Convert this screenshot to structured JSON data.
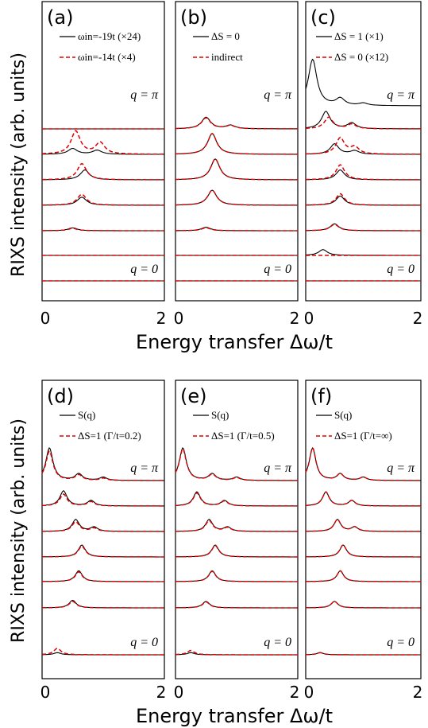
{
  "chart_data": {
    "type": "line",
    "ylabel": "RIXS intensity (arb. units)",
    "xlabel": "Energy transfer Δω/t",
    "xlim": [
      0,
      2
    ],
    "xticks": [
      "0",
      "2"
    ],
    "q_top_label": "q = π",
    "q_bottom_label": "q = 0",
    "colors": {
      "solid": "#000000",
      "dashed": "#dd0000"
    },
    "panels": [
      {
        "label": "(a)",
        "legend": [
          "ωin=-19t (×24)",
          "ωin=-14t (×4)"
        ],
        "curves": [
          {
            "q": "0",
            "solid": [],
            "dashed": []
          },
          {
            "q": "π/6",
            "solid": [],
            "dashed": []
          },
          {
            "q": "π/3",
            "solid": [
              [
                0.5,
                0.25
              ]
            ],
            "dashed": [
              [
                0.5,
                0.2
              ]
            ]
          },
          {
            "q": "π/2",
            "solid": [
              [
                0.65,
                0.7
              ]
            ],
            "dashed": [
              [
                0.65,
                0.95
              ]
            ]
          },
          {
            "q": "2π/3",
            "solid": [
              [
                0.7,
                0.85
              ]
            ],
            "dashed": [
              [
                0.65,
                1.4
              ]
            ]
          },
          {
            "q": "5π/6",
            "solid": [
              [
                0.5,
                0.5
              ],
              [
                0.9,
                0.35
              ]
            ],
            "dashed": [
              [
                0.55,
                2.0
              ],
              [
                0.95,
                1.0
              ]
            ]
          },
          {
            "q": "π",
            "solid": [],
            "dashed": []
          }
        ]
      },
      {
        "label": "(b)",
        "legend": [
          "ΔS = 0",
          "indirect"
        ],
        "curves": [
          {
            "q": "0",
            "solid": [],
            "dashed": []
          },
          {
            "q": "π/6",
            "solid": [],
            "dashed": []
          },
          {
            "q": "π/3",
            "solid": [
              [
                0.5,
                0.3
              ]
            ],
            "dashed": [
              [
                0.5,
                0.25
              ]
            ]
          },
          {
            "q": "π/2",
            "solid": [
              [
                0.6,
                1.3
              ]
            ],
            "dashed": [
              [
                0.6,
                1.3
              ]
            ]
          },
          {
            "q": "2π/3",
            "solid": [
              [
                0.65,
                1.8
              ]
            ],
            "dashed": [
              [
                0.65,
                1.8
              ]
            ]
          },
          {
            "q": "5π/6",
            "solid": [
              [
                0.6,
                1.8
              ]
            ],
            "dashed": [
              [
                0.6,
                1.8
              ]
            ]
          },
          {
            "q": "π",
            "solid": [
              [
                0.5,
                1.0
              ],
              [
                0.9,
                0.3
              ]
            ],
            "dashed": [
              [
                0.5,
                0.95
              ],
              [
                0.9,
                0.28
              ]
            ]
          }
        ]
      },
      {
        "label": "(c)",
        "legend": [
          "ΔS = 1 (×1)",
          "ΔS = 0 (×12)"
        ],
        "curves": [
          {
            "q": "0",
            "solid": [],
            "dashed": []
          },
          {
            "q": "π/6",
            "solid": [
              [
                0.3,
                0.5
              ]
            ],
            "dashed": []
          },
          {
            "q": "π/3",
            "solid": [
              [
                0.5,
                0.6
              ]
            ],
            "dashed": [
              [
                0.5,
                0.55
              ]
            ]
          },
          {
            "q": "π/2",
            "solid": [
              [
                0.6,
                0.8
              ]
            ],
            "dashed": [
              [
                0.6,
                1.0
              ]
            ]
          },
          {
            "q": "2π/3",
            "solid": [
              [
                0.6,
                0.85
              ]
            ],
            "dashed": [
              [
                0.6,
                1.3
              ]
            ]
          },
          {
            "q": "5π/6",
            "solid": [
              [
                0.5,
                0.9
              ],
              [
                0.85,
                0.3
              ]
            ],
            "dashed": [
              [
                0.6,
                1.4
              ],
              [
                0.85,
                0.6
              ]
            ]
          },
          {
            "q": "π",
            "solid": [
              [
                0.35,
                1.5
              ],
              [
                0.8,
                0.5
              ]
            ],
            "dashed": [
              [
                0.4,
                1.0
              ],
              [
                0.8,
                0.4
              ]
            ]
          },
          {
            "q": "top",
            "solid": [
              [
                0.12,
                4.0
              ],
              [
                0.6,
                0.6
              ],
              [
                1.0,
                0.2
              ]
            ],
            "dashed": []
          }
        ]
      },
      {
        "label": "(d)",
        "legend": [
          "S(q)",
          "ΔS=1 (Γ/t=0.2)"
        ],
        "curves": [
          {
            "q": "0",
            "solid": [
              [
                0.25,
                0.2
              ]
            ],
            "dashed": [
              [
                0.25,
                0.6
              ]
            ]
          },
          {
            "q": "π/6",
            "solid": [
              [
                0.5,
                0.7
              ]
            ],
            "dashed": [
              [
                0.5,
                0.6
              ]
            ]
          },
          {
            "q": "π/3",
            "solid": [
              [
                0.6,
                1.0
              ]
            ],
            "dashed": [
              [
                0.6,
                0.9
              ]
            ]
          },
          {
            "q": "π/2",
            "solid": [
              [
                0.65,
                1.1
              ]
            ],
            "dashed": [
              [
                0.65,
                1.0
              ]
            ]
          },
          {
            "q": "2π/3",
            "solid": [
              [
                0.55,
                1.1
              ],
              [
                0.85,
                0.4
              ]
            ],
            "dashed": [
              [
                0.55,
                0.9
              ],
              [
                0.85,
                0.3
              ]
            ]
          },
          {
            "q": "5π/6",
            "solid": [
              [
                0.35,
                1.4
              ],
              [
                0.8,
                0.5
              ]
            ],
            "dashed": [
              [
                0.35,
                1.1
              ],
              [
                0.8,
                0.4
              ]
            ]
          },
          {
            "q": "π",
            "solid": [
              [
                0.12,
                3.0
              ],
              [
                0.6,
                0.6
              ],
              [
                1.0,
                0.3
              ]
            ],
            "dashed": [
              [
                0.12,
                2.7
              ],
              [
                0.6,
                0.5
              ],
              [
                1.0,
                0.2
              ]
            ]
          }
        ]
      },
      {
        "label": "(e)",
        "legend": [
          "S(q)",
          "ΔS=1 (Γ/t=0.5)"
        ],
        "curves": [
          {
            "q": "0",
            "solid": [
              [
                0.25,
                0.2
              ]
            ],
            "dashed": [
              [
                0.25,
                0.4
              ]
            ]
          },
          {
            "q": "π/6",
            "solid": [
              [
                0.5,
                0.6
              ]
            ],
            "dashed": [
              [
                0.5,
                0.55
              ]
            ]
          },
          {
            "q": "π/3",
            "solid": [
              [
                0.6,
                1.0
              ]
            ],
            "dashed": [
              [
                0.6,
                0.95
              ]
            ]
          },
          {
            "q": "π/2",
            "solid": [
              [
                0.65,
                1.1
              ]
            ],
            "dashed": [
              [
                0.65,
                1.05
              ]
            ]
          },
          {
            "q": "2π/3",
            "solid": [
              [
                0.55,
                1.1
              ],
              [
                0.85,
                0.4
              ]
            ],
            "dashed": [
              [
                0.55,
                1.0
              ],
              [
                0.85,
                0.35
              ]
            ]
          },
          {
            "q": "5π/6",
            "solid": [
              [
                0.35,
                1.3
              ],
              [
                0.8,
                0.5
              ]
            ],
            "dashed": [
              [
                0.35,
                1.2
              ],
              [
                0.8,
                0.45
              ]
            ]
          },
          {
            "q": "π",
            "solid": [
              [
                0.12,
                3.0
              ],
              [
                0.6,
                0.6
              ],
              [
                1.0,
                0.3
              ]
            ],
            "dashed": [
              [
                0.12,
                2.9
              ],
              [
                0.6,
                0.55
              ],
              [
                1.0,
                0.25
              ]
            ]
          }
        ]
      },
      {
        "label": "(f)",
        "legend": [
          "S(q)",
          "ΔS=1 (Γ/t=∞)"
        ],
        "curves": [
          {
            "q": "0",
            "solid": [
              [
                0.25,
                0.2
              ]
            ],
            "dashed": [
              [
                0.25,
                0.2
              ]
            ]
          },
          {
            "q": "π/6",
            "solid": [
              [
                0.5,
                0.6
              ]
            ],
            "dashed": [
              [
                0.5,
                0.6
              ]
            ]
          },
          {
            "q": "π/3",
            "solid": [
              [
                0.6,
                1.0
              ]
            ],
            "dashed": [
              [
                0.6,
                1.0
              ]
            ]
          },
          {
            "q": "π/2",
            "solid": [
              [
                0.65,
                1.1
              ]
            ],
            "dashed": [
              [
                0.65,
                1.1
              ]
            ]
          },
          {
            "q": "2π/3",
            "solid": [
              [
                0.55,
                1.1
              ],
              [
                0.85,
                0.4
              ]
            ],
            "dashed": [
              [
                0.55,
                1.1
              ],
              [
                0.85,
                0.4
              ]
            ]
          },
          {
            "q": "5π/6",
            "solid": [
              [
                0.35,
                1.3
              ],
              [
                0.8,
                0.5
              ]
            ],
            "dashed": [
              [
                0.35,
                1.3
              ],
              [
                0.8,
                0.5
              ]
            ]
          },
          {
            "q": "π",
            "solid": [
              [
                0.12,
                3.0
              ],
              [
                0.6,
                0.6
              ],
              [
                1.0,
                0.3
              ]
            ],
            "dashed": [
              [
                0.12,
                3.0
              ],
              [
                0.6,
                0.6
              ],
              [
                1.0,
                0.3
              ]
            ]
          }
        ]
      }
    ]
  }
}
